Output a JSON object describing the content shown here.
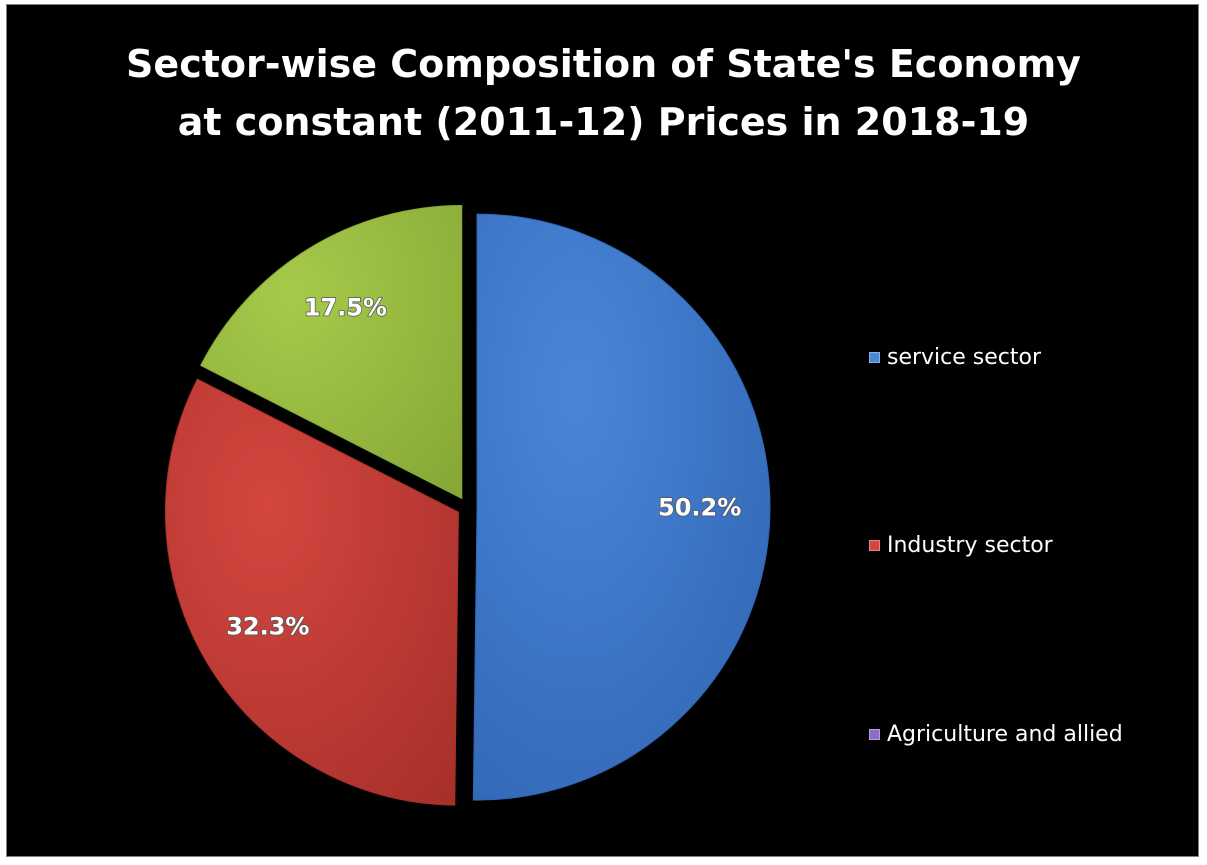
{
  "chart_data": {
    "type": "pie",
    "title_lines": [
      "Sector-wise Composition of State's Economy",
      "at constant (2011-12) Prices in 2018-19"
    ],
    "slices": [
      {
        "name": "service sector",
        "value": 50.2,
        "label": "50.2%",
        "color": "#4a86d8",
        "dark": "#2f65b3"
      },
      {
        "name": "Industry sector",
        "value": 32.3,
        "label": "32.3%",
        "color": "#d4463f",
        "dark": "#a8302b"
      },
      {
        "name": "Agriculture and allied",
        "value": 17.5,
        "label": "17.5%",
        "color": "#a6ca4a",
        "dark": "#86a936"
      }
    ],
    "legend": {
      "placement": "right",
      "items": [
        {
          "label": "service sector",
          "color": "#4a86d8"
        },
        {
          "label": "Industry sector",
          "color": "#d4463f"
        },
        {
          "label": "Agriculture and allied",
          "color": "#8f6cc8"
        }
      ]
    }
  }
}
